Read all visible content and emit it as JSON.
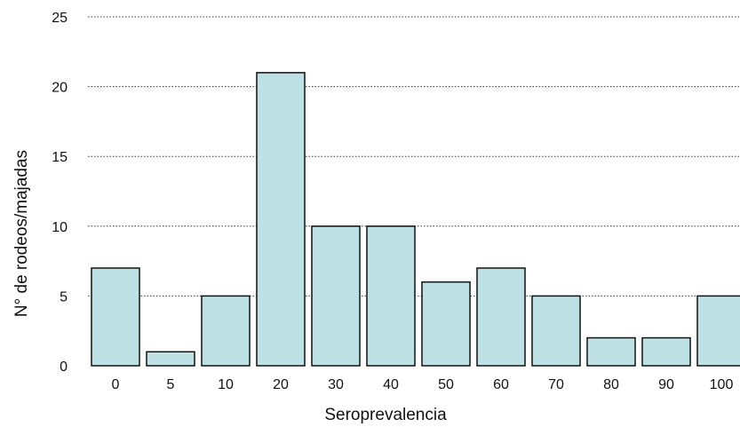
{
  "chart_data": {
    "type": "bar",
    "categories": [
      "0",
      "5",
      "10",
      "20",
      "30",
      "40",
      "50",
      "60",
      "70",
      "80",
      "90",
      "100"
    ],
    "values": [
      7,
      1,
      5,
      21,
      10,
      10,
      6,
      7,
      5,
      2,
      2,
      5
    ],
    "xlabel": "Seroprevalencia",
    "ylabel": "N° de rodeos/majadas",
    "ylim": [
      0,
      25
    ],
    "yticks": [
      0,
      5,
      10,
      15,
      20,
      25
    ],
    "grid": "horizontal dotted",
    "colors": {
      "bar_fill": "#bde1e5",
      "bar_stroke": "#111111",
      "grid": "#333333"
    }
  }
}
